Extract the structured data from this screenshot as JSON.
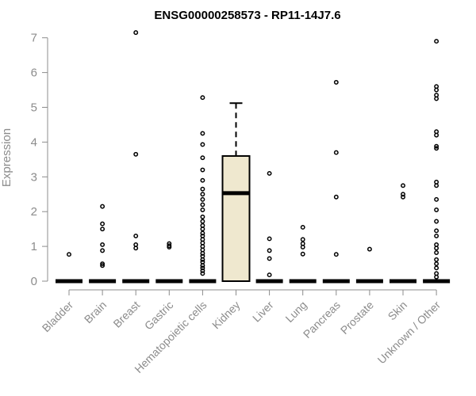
{
  "chart_data": {
    "type": "box",
    "title": "ENSG00000258573 - RP11-14J7.6",
    "ylabel": "Expression",
    "xlabel": "",
    "ylim": [
      0,
      7.2
    ],
    "yticks": [
      0,
      1,
      2,
      3,
      4,
      5,
      6,
      7
    ],
    "box_fill": "#efe8cf",
    "categories": [
      "Bladder",
      "Brain",
      "Breast",
      "Gastric",
      "Hematopoietic cells",
      "Kidney",
      "Liver",
      "Lung",
      "Pancreas",
      "Prostate",
      "Skin",
      "Unknown / Other"
    ],
    "groups": [
      {
        "name": "Bladder",
        "q1": 0,
        "median": 0,
        "q3": 0,
        "whisker_low": 0,
        "whisker_high": 0,
        "outliers": [
          0.77
        ]
      },
      {
        "name": "Brain",
        "q1": 0,
        "median": 0,
        "q3": 0,
        "whisker_low": 0,
        "whisker_high": 0,
        "outliers": [
          2.15,
          1.65,
          1.5,
          1.05,
          0.88,
          0.5,
          0.45
        ]
      },
      {
        "name": "Breast",
        "q1": 0,
        "median": 0,
        "q3": 0,
        "whisker_low": 0,
        "whisker_high": 0,
        "outliers": [
          7.15,
          3.65,
          1.3,
          1.05,
          0.95
        ]
      },
      {
        "name": "Gastric",
        "q1": 0,
        "median": 0,
        "q3": 0,
        "whisker_low": 0,
        "whisker_high": 0,
        "outliers": [
          1.08,
          1.02,
          0.98
        ]
      },
      {
        "name": "Hematopoietic cells",
        "q1": 0,
        "median": 0,
        "q3": 0,
        "whisker_low": 0,
        "whisker_high": 0,
        "outliers": [
          5.28,
          4.25,
          3.93,
          3.55,
          3.2,
          2.9,
          2.65,
          2.5,
          2.35,
          2.2,
          2.05,
          1.85,
          1.72,
          1.6,
          1.5,
          1.38,
          1.3,
          1.2,
          1.1,
          1.0,
          0.9,
          0.8,
          0.72,
          0.62,
          0.55,
          0.45,
          0.38,
          0.3,
          0.22
        ]
      },
      {
        "name": "Kidney",
        "q1": 0,
        "median": 2.53,
        "q3": 3.6,
        "whisker_low": 0,
        "whisker_high": 5.12,
        "outliers": []
      },
      {
        "name": "Liver",
        "q1": 0,
        "median": 0,
        "q3": 0,
        "whisker_low": 0,
        "whisker_high": 0,
        "outliers": [
          3.1,
          1.22,
          0.88,
          0.65,
          0.18
        ]
      },
      {
        "name": "Lung",
        "q1": 0,
        "median": 0,
        "q3": 0,
        "whisker_low": 0,
        "whisker_high": 0,
        "outliers": [
          1.55,
          1.2,
          1.08,
          0.98,
          0.78
        ]
      },
      {
        "name": "Pancreas",
        "q1": 0,
        "median": 0,
        "q3": 0,
        "whisker_low": 0,
        "whisker_high": 0,
        "outliers": [
          5.72,
          3.7,
          2.42,
          0.77
        ]
      },
      {
        "name": "Prostate",
        "q1": 0,
        "median": 0,
        "q3": 0,
        "whisker_low": 0,
        "whisker_high": 0,
        "outliers": [
          0.92
        ]
      },
      {
        "name": "Skin",
        "q1": 0,
        "median": 0,
        "q3": 0,
        "whisker_low": 0,
        "whisker_high": 0,
        "outliers": [
          2.75,
          2.5,
          2.42
        ]
      },
      {
        "name": "Unknown / Other",
        "q1": 0,
        "median": 0,
        "q3": 0,
        "whisker_low": 0,
        "whisker_high": 0,
        "outliers": [
          6.9,
          5.6,
          5.5,
          5.35,
          5.25,
          4.3,
          4.2,
          3.88,
          3.82,
          2.85,
          2.75,
          2.35,
          2.05,
          1.72,
          1.45,
          1.3,
          1.05,
          0.95,
          0.82,
          0.62,
          0.5,
          0.38,
          0.22,
          0.12
        ]
      }
    ]
  }
}
